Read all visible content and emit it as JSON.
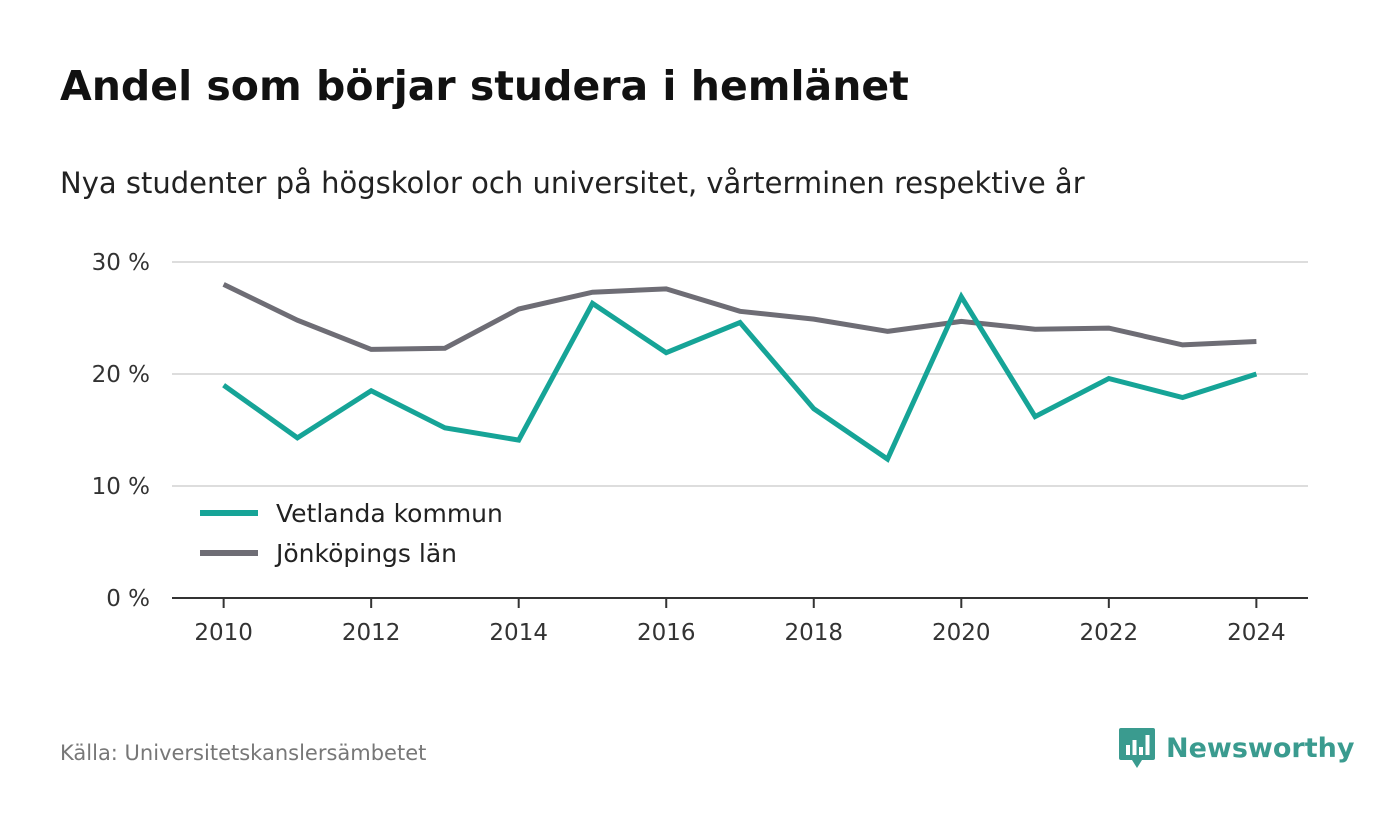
{
  "title": "Andel som börjar studera i hemlänet",
  "subtitle": "Nya studenter på högskolor och universitet, vårterminen respektive år",
  "source": "Källa: Universitetskanslersämbetet",
  "brand": {
    "name": "Newsworthy",
    "icon": "newsworthy-logo-icon",
    "color": "#3a9b8f"
  },
  "chart_data": {
    "type": "line",
    "x": [
      2010,
      2011,
      2012,
      2013,
      2014,
      2015,
      2016,
      2017,
      2018,
      2019,
      2020,
      2021,
      2022,
      2023,
      2024
    ],
    "xticks": [
      2010,
      2012,
      2014,
      2016,
      2018,
      2020,
      2022,
      2024
    ],
    "xtick_labels": [
      "2010",
      "2012",
      "2014",
      "2016",
      "2018",
      "2020",
      "2022",
      "2024"
    ],
    "yticks": [
      0,
      10,
      20,
      30
    ],
    "ytick_labels": [
      "0 %",
      "10 %",
      "20 %",
      "30 %"
    ],
    "ylim": [
      0,
      30
    ],
    "xlim": [
      2009.3,
      2024.7
    ],
    "grid": true,
    "legend_position": "bottom-left",
    "series": [
      {
        "name": "Vetlanda kommun",
        "color": "#16a497",
        "values": [
          19.0,
          14.3,
          18.5,
          15.2,
          14.1,
          26.3,
          21.9,
          24.6,
          16.9,
          12.4,
          26.9,
          16.2,
          19.6,
          17.9,
          20.0
        ]
      },
      {
        "name": "Jönköpings län",
        "color": "#6e6d75",
        "values": [
          28.0,
          24.8,
          22.2,
          22.3,
          25.8,
          27.3,
          27.6,
          25.6,
          24.9,
          23.8,
          24.7,
          24.0,
          24.1,
          22.6,
          22.9
        ]
      }
    ]
  }
}
